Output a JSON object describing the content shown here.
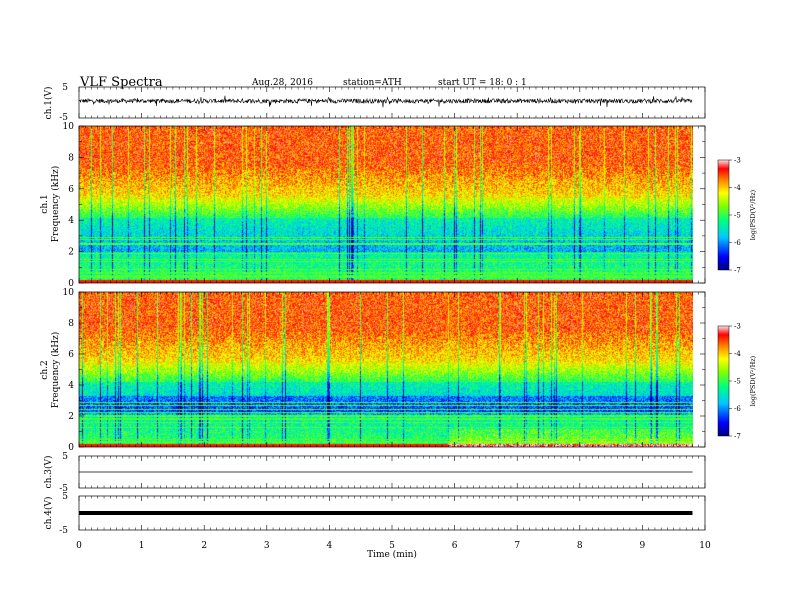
{
  "header": {
    "title": "VLF  Spectra",
    "date": "Aug.28, 2016",
    "station": "station=ATH",
    "start": "start  UT  =   18: 0  : 1"
  },
  "chart_data": [
    {
      "type": "line",
      "ylabel": "ch.1(V)",
      "ylim": [
        -5,
        5
      ],
      "yticks": [
        "5",
        "-5"
      ],
      "description_series": "ch.1 waveform, noisy around ~0.5 V, peaks about +/-2 V"
    },
    {
      "type": "heatmap",
      "ylabel_channel": "ch.1",
      "ylabel": "Frequency  (kHz)",
      "ylim": [
        0,
        10
      ],
      "yticks": [
        "0",
        "2",
        "4",
        "6",
        "8",
        "10"
      ],
      "colorbar": {
        "label": "log(PSD(V²/Hz)",
        "range": [
          -7,
          -3
        ],
        "ticks": [
          "-7",
          "-6",
          "-5",
          "-4",
          "-3"
        ]
      }
    },
    {
      "type": "heatmap",
      "ylabel_channel": "ch.2",
      "ylabel": "Frequency  (kHz)",
      "ylim": [
        0,
        10
      ],
      "yticks": [
        "0",
        "2",
        "4",
        "6",
        "8",
        "10"
      ],
      "colorbar": {
        "label": "log(PSD(V²/Hz)",
        "range": [
          -7,
          -3
        ],
        "ticks": [
          "-7",
          "-6",
          "-5",
          "-4",
          "-3"
        ]
      }
    },
    {
      "type": "line",
      "ylabel": "ch.3(V)",
      "ylim": [
        -5,
        5
      ],
      "yticks": [
        "5",
        "-5"
      ],
      "constant_value": 0
    },
    {
      "type": "line",
      "ylabel": "ch.4(V)",
      "ylim": [
        -5,
        5
      ],
      "yticks": [
        "5",
        "-5"
      ],
      "constant_value": 0
    }
  ],
  "xaxis": {
    "label": "Time  (min)",
    "range": [
      0,
      10
    ],
    "ticks": [
      "0",
      "1",
      "2",
      "3",
      "4",
      "5",
      "6",
      "7",
      "8",
      "9",
      "10"
    ],
    "data_end": 9.8
  }
}
